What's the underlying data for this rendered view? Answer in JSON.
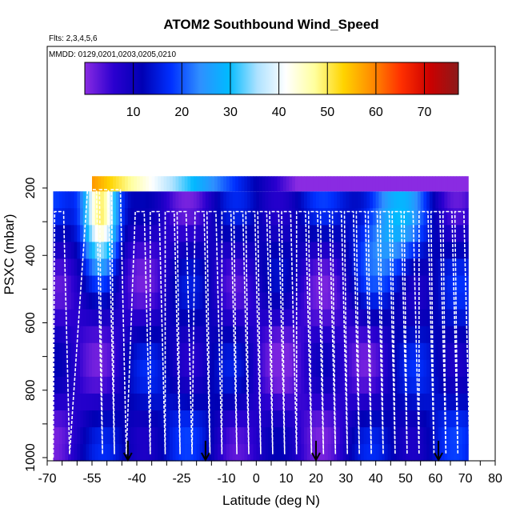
{
  "chart_data": {
    "type": "heatmap",
    "title": "ATOM2 Southbound Wind_Speed",
    "annotations": [
      "Flts: 2,3,4,5,6",
      "MMDD: 0129,0201,0203,0205,0210"
    ],
    "xlabel": "Latitude (deg N)",
    "ylabel": "PSXC (mbar)",
    "xlim": [
      -70,
      80
    ],
    "ylim": [
      1000,
      150
    ],
    "y_reversed": true,
    "x_ticks": [
      -70,
      -65,
      -60,
      -55,
      -50,
      -45,
      -40,
      -35,
      -30,
      -25,
      -20,
      -15,
      -10,
      -5,
      0,
      5,
      10,
      15,
      20,
      25,
      30,
      35,
      40,
      45,
      50,
      55,
      60,
      65,
      70,
      75,
      80
    ],
    "x_tick_labels": [
      "-70",
      "-55",
      "-40",
      "-25",
      "-10",
      "0",
      "10",
      "20",
      "30",
      "40",
      "50",
      "60",
      "70",
      "80"
    ],
    "y_tick_labels": [
      "200",
      "400",
      "600",
      "800",
      "1000"
    ],
    "colorbar": {
      "range": [
        0,
        77
      ],
      "tick_labels": [
        "10",
        "20",
        "30",
        "40",
        "50",
        "60",
        "70"
      ],
      "colors": [
        "#8a2be2",
        "#2b00d0",
        "#0000b4",
        "#0030ff",
        "#2f8fff",
        "#00baff",
        "#aee2ff",
        "#ffffff",
        "#ffff9e",
        "#ffd400",
        "#ff8c00",
        "#ff3000",
        "#cc0000",
        "#8b1a1a"
      ]
    },
    "grid": false,
    "grid_spec": {
      "lat_bins": [
        -68,
        71,
        1
      ],
      "pressure_bins": [
        210,
        1000,
        50
      ]
    },
    "flight_tracks": {
      "color": "#ffffff",
      "count": 5,
      "profile_latitudes": [
        -66,
        -55,
        -51,
        -47,
        -39,
        -34,
        -29,
        -25,
        -19,
        -15,
        -10,
        -6,
        -2,
        2,
        6,
        10,
        15,
        19,
        23,
        27,
        31,
        35,
        39,
        43,
        47,
        51,
        56,
        60,
        64,
        68
      ]
    },
    "markers": {
      "type": "arrow",
      "color": "#000000",
      "latitudes": [
        -43,
        -17,
        20,
        61
      ]
    }
  }
}
